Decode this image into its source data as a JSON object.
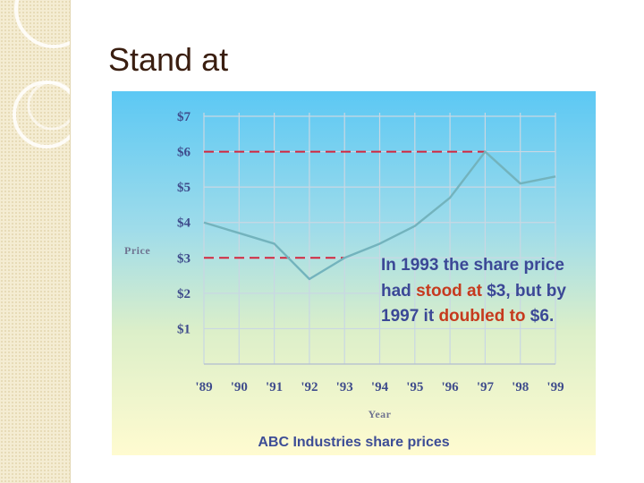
{
  "slide": {
    "title": "Stand at"
  },
  "chart_data": {
    "type": "line",
    "title": "",
    "caption": "ABC Industries share prices",
    "xlabel": "Year",
    "ylabel": "Price",
    "x": [
      "'89",
      "'90",
      "'91",
      "'92",
      "'93",
      "'94",
      "'95",
      "'96",
      "'97",
      "'98",
      "'99"
    ],
    "y_ticks": [
      "$1",
      "$2",
      "$3",
      "$4",
      "$5",
      "$6",
      "$7"
    ],
    "ylim": [
      0,
      7
    ],
    "grid": true,
    "series": [
      {
        "values": [
          4.0,
          3.7,
          3.4,
          2.4,
          3.0,
          3.4,
          3.9,
          4.7,
          6.0,
          5.1,
          5.3
        ]
      }
    ],
    "reference_lines": [
      {
        "value": 6,
        "from": "'89",
        "to": "'97"
      },
      {
        "value": 3,
        "from": "'89",
        "to": "'93"
      }
    ],
    "annotation": {
      "parts": [
        {
          "text": "In 1993 the share price had ",
          "highlight": false
        },
        {
          "text": "stood at",
          "highlight": true
        },
        {
          "text": " $3, but by 1997 it ",
          "highlight": false
        },
        {
          "text": "doubled to",
          "highlight": true
        },
        {
          "text": " $6.",
          "highlight": false
        }
      ]
    }
  },
  "colors": {
    "series_line": "#73b3bd",
    "reference_line": "#d3263e",
    "grid": "#c9d7e3",
    "highlight_text": "#c63a1e"
  }
}
